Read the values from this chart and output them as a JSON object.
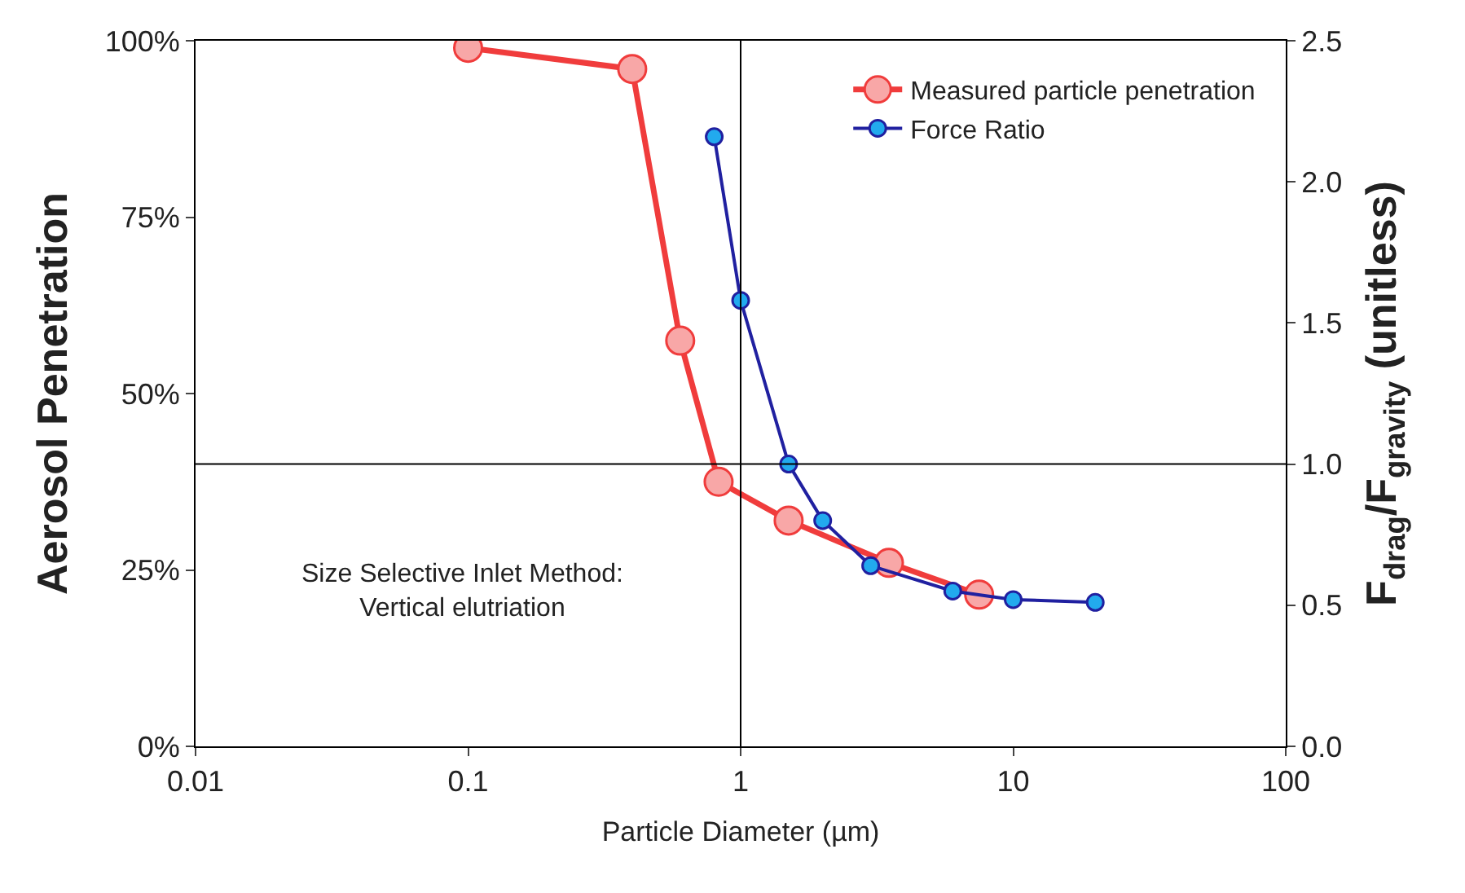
{
  "chart_data": {
    "type": "line",
    "xlabel": "Particle Diameter (µm)",
    "ylabel": "Aerosol Penetration",
    "y2label": "F$_{drag}$/F$_{gravity}$ (unitless)",
    "log": "x",
    "xlim": [
      0.01,
      100
    ],
    "xticks": [
      0.01,
      0.1,
      1,
      10,
      100
    ],
    "ylim": [
      0,
      100
    ],
    "yticks": [
      {
        "value": 0,
        "label": "0%"
      },
      {
        "value": 25,
        "label": "25%"
      },
      {
        "value": 50,
        "label": "50%"
      },
      {
        "value": 75,
        "label": "75%"
      },
      {
        "value": 100,
        "label": "100%"
      }
    ],
    "y2lim": [
      0,
      2.5
    ],
    "y2ticks": [
      {
        "value": 0,
        "label": "0.0"
      },
      {
        "value": 0.5,
        "label": "0.5"
      },
      {
        "value": 1,
        "label": "1.0"
      },
      {
        "value": 1.5,
        "label": "1.5"
      },
      {
        "value": 2,
        "label": "2.0"
      },
      {
        "value": 2.5,
        "label": "2.5"
      }
    ],
    "series": [
      {
        "name": "Measured particle penetration",
        "color": "#f03c3c",
        "x": [
          0.1,
          0.4,
          0.6,
          0.83,
          1.5,
          3.5,
          7.5
        ],
        "values": [
          99,
          96,
          57.5,
          37.5,
          32,
          26,
          21.5
        ]
      },
      {
        "name": "Force Ratio",
        "color": "#2020a0",
        "axis": "y2",
        "x": [
          0.8,
          1.0,
          1.5,
          2.0,
          3.0,
          6.0,
          10,
          20
        ],
        "values": [
          2.16,
          1.58,
          1.0,
          0.8,
          0.64,
          0.55,
          0.52,
          0.51
        ]
      }
    ],
    "ref_lines": [
      {
        "axis": "x",
        "value": 1,
        "color": "#000000"
      },
      {
        "axis": "y",
        "value": 40,
        "color": "#000000"
      }
    ],
    "annotations": [
      "Size Selective Inlet Method:\nVertical elutriation"
    ],
    "legend": "top right",
    "marker": "circle",
    "line_style": "solid"
  }
}
